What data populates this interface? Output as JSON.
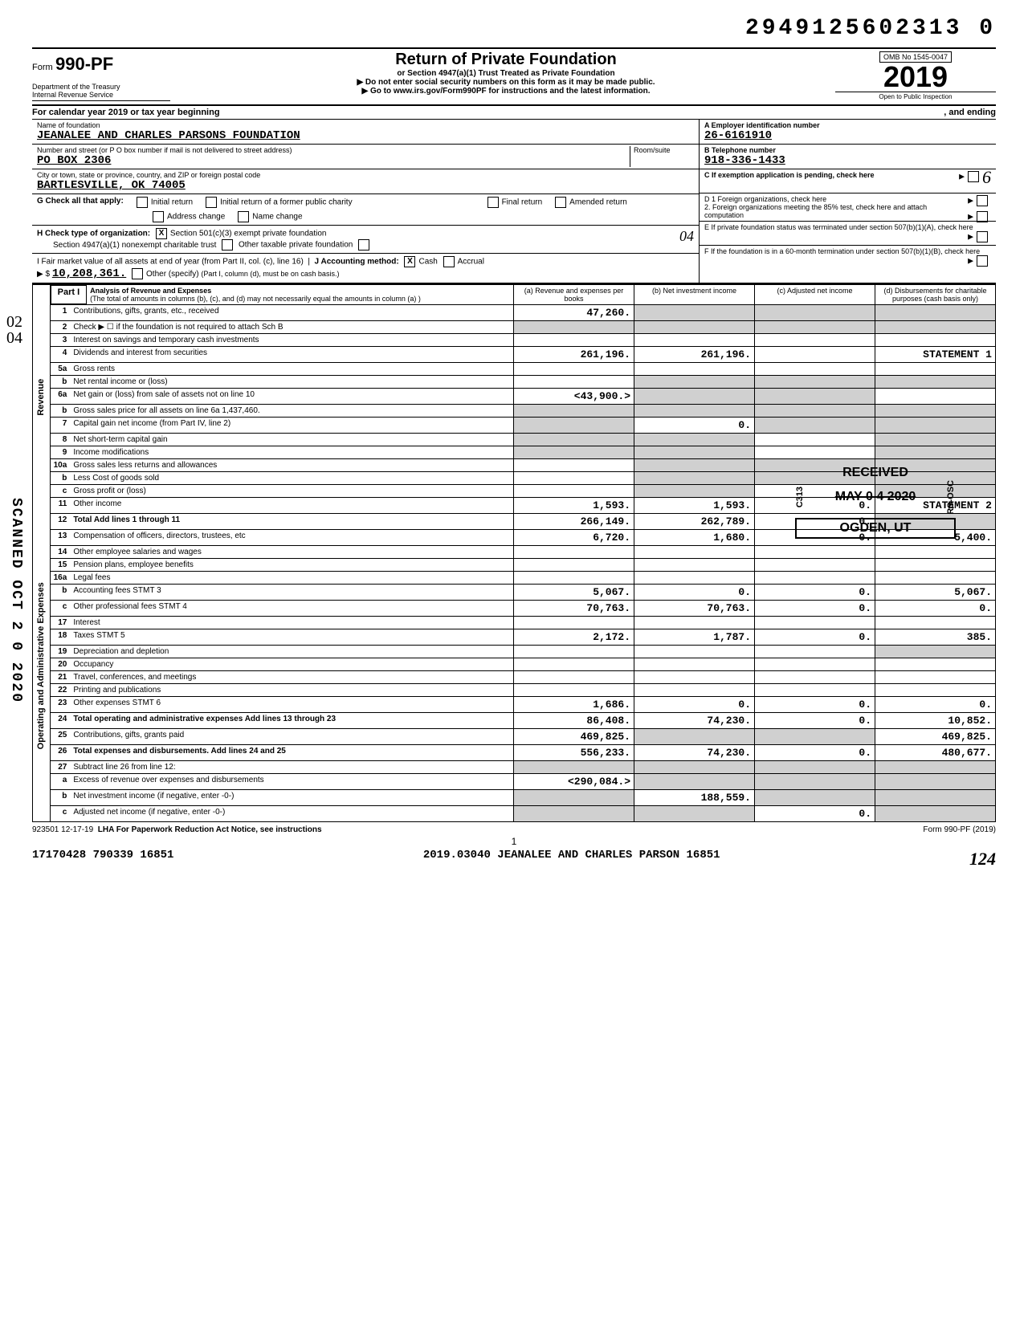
{
  "doc_number": "2949125602313 0",
  "form": {
    "prefix": "Form",
    "number": "990-PF",
    "dept": "Department of the Treasury",
    "irs": "Internal Revenue Service"
  },
  "header": {
    "title": "Return of Private Foundation",
    "sub1": "or Section 4947(a)(1) Trust Treated as Private Foundation",
    "sub2": "Do not enter social security numbers on this form as it may be made public.",
    "sub3": "Go to www.irs.gov/Form990PF for instructions and the latest information.",
    "omb": "OMB No  1545-0047",
    "year": "2019",
    "inspection": "Open to Public Inspection"
  },
  "calyear": {
    "left": "For calendar year 2019 or tax year beginning",
    "right": ", and ending"
  },
  "foundation": {
    "name_label": "Name of foundation",
    "name": "JEANALEE AND CHARLES PARSONS FOUNDATION",
    "addr_label": "Number and street (or P O  box number if mail is not delivered to street address)",
    "room_label": "Room/suite",
    "addr": "PO BOX 2306",
    "city_label": "City or town, state or province, country, and ZIP or foreign postal code",
    "city": "BARTLESVILLE, OK  74005"
  },
  "rightcol": {
    "a_label": "A  Employer identification number",
    "a_value": "26-6161910",
    "b_label": "B  Telephone number",
    "b_value": "918-336-1433",
    "c_label": "C  If exemption application is pending, check here",
    "d1_label": "D  1   Foreign organizations, check here",
    "d2_label": "2.  Foreign organizations meeting the 85% test, check here and attach computation",
    "e_label": "E   If private foundation status was terminated under section 507(b)(1)(A), check here",
    "f_label": "F   If the foundation is in a 60-month termination under section 507(b)(1)(B), check here"
  },
  "g": {
    "label": "G   Check all that apply:",
    "opts": [
      "Initial return",
      "Final return",
      "Address change",
      "Initial return of a former public charity",
      "Amended return",
      "Name change"
    ]
  },
  "h": {
    "label": "H   Check type of organization:",
    "o1": "Section 501(c)(3) exempt private foundation",
    "o2": "Section 4947(a)(1) nonexempt charitable trust",
    "o3": "Other taxable private foundation"
  },
  "i": {
    "label": "I   Fair market value of all assets at end of year (from Part II, col. (c), line 16)",
    "value": "10,208,361.",
    "note": "(Part I, column (d), must be on cash basis.)"
  },
  "j": {
    "label": "J    Accounting method:",
    "cash": "Cash",
    "accrual": "Accrual",
    "other": "Other (specify)"
  },
  "hw04": "04",
  "hw02": "02",
  "hw04b": "04",
  "hw6": "6",
  "part1": {
    "label": "Part I",
    "title": "Analysis of Revenue and Expenses",
    "sub": "(The total of amounts in columns (b), (c), and (d) may not necessarily equal the amounts in column (a) )",
    "cols": [
      "(a) Revenue and expenses per books",
      "(b) Net investment income",
      "(c) Adjusted net income",
      "(d) Disbursements for charitable purposes (cash basis only)"
    ]
  },
  "side_labels": {
    "revenue": "Revenue",
    "expenses": "Operating and Administrative Expenses"
  },
  "scanned": "SCANNED OCT 2 0 2020",
  "received": {
    "title": "RECEIVED",
    "date": "MAY 0 4 2020",
    "loc": "OGDEN, UT",
    "side": "C313",
    "side2": "RS-OSC"
  },
  "lines": [
    {
      "n": "1",
      "d": "Contributions, gifts, grants, etc., received",
      "a": "47,260.",
      "b": "",
      "c": "",
      "dd": "",
      "bs": true,
      "cs": true,
      "ds": true
    },
    {
      "n": "2",
      "d": "Check ▶ ☐  if the foundation is not required to attach Sch  B",
      "a": "",
      "b": "",
      "c": "",
      "dd": "",
      "as": true,
      "bs": true,
      "cs": true,
      "ds": true
    },
    {
      "n": "3",
      "d": "Interest on savings and temporary cash investments",
      "a": "",
      "b": "",
      "c": "",
      "dd": ""
    },
    {
      "n": "4",
      "d": "Dividends and interest from securities",
      "a": "261,196.",
      "b": "261,196.",
      "c": "",
      "dd": "STATEMENT 1"
    },
    {
      "n": "5a",
      "d": "Gross rents",
      "a": "",
      "b": "",
      "c": "",
      "dd": ""
    },
    {
      "n": "b",
      "d": "Net rental income or (loss)",
      "a": "",
      "b": "",
      "c": "",
      "dd": "",
      "bs": true,
      "cs": true,
      "ds": true
    },
    {
      "n": "6a",
      "d": "Net gain or (loss) from sale of assets not on line 10",
      "a": "<43,900.>",
      "b": "",
      "c": "",
      "dd": "",
      "bs": true,
      "cs": true
    },
    {
      "n": "b",
      "d": "Gross sales price for all assets on line 6a   1,437,460.",
      "a": "",
      "b": "",
      "c": "",
      "dd": "",
      "as": true,
      "bs": true,
      "cs": true,
      "ds": true
    },
    {
      "n": "7",
      "d": "Capital gain net income (from Part IV, line 2)",
      "a": "",
      "b": "0.",
      "c": "",
      "dd": "",
      "as": true,
      "cs": true,
      "ds": true
    },
    {
      "n": "8",
      "d": "Net short-term capital gain",
      "a": "",
      "b": "",
      "c": "",
      "dd": "",
      "as": true,
      "bs": true,
      "ds": true
    },
    {
      "n": "9",
      "d": "Income modifications",
      "a": "",
      "b": "",
      "c": "",
      "dd": "",
      "as": true,
      "bs": true,
      "ds": true
    },
    {
      "n": "10a",
      "d": "Gross sales less returns and allowances",
      "a": "",
      "b": "",
      "c": "",
      "dd": "",
      "bs": true,
      "cs": true,
      "ds": true
    },
    {
      "n": "b",
      "d": "Less  Cost of goods sold",
      "a": "",
      "b": "",
      "c": "",
      "dd": "",
      "bs": true,
      "cs": true,
      "ds": true
    },
    {
      "n": "c",
      "d": "Gross profit or (loss)",
      "a": "",
      "b": "",
      "c": "",
      "dd": "",
      "bs": true,
      "ds": true
    },
    {
      "n": "11",
      "d": "Other income",
      "a": "1,593.",
      "b": "1,593.",
      "c": "0.",
      "dd": "STATEMENT 2"
    },
    {
      "n": "12",
      "d": "Total  Add lines 1 through 11",
      "a": "266,149.",
      "b": "262,789.",
      "c": "0.",
      "dd": "",
      "ds": true,
      "total": true
    },
    {
      "n": "13",
      "d": "Compensation of officers, directors, trustees, etc",
      "a": "6,720.",
      "b": "1,680.",
      "c": "0.",
      "dd": "5,400."
    },
    {
      "n": "14",
      "d": "Other employee salaries and wages",
      "a": "",
      "b": "",
      "c": "",
      "dd": ""
    },
    {
      "n": "15",
      "d": "Pension plans, employee benefits",
      "a": "",
      "b": "",
      "c": "",
      "dd": ""
    },
    {
      "n": "16a",
      "d": "Legal fees",
      "a": "",
      "b": "",
      "c": "",
      "dd": ""
    },
    {
      "n": "b",
      "d": "Accounting fees                 STMT 3",
      "a": "5,067.",
      "b": "0.",
      "c": "0.",
      "dd": "5,067."
    },
    {
      "n": "c",
      "d": "Other professional fees         STMT 4",
      "a": "70,763.",
      "b": "70,763.",
      "c": "0.",
      "dd": "0."
    },
    {
      "n": "17",
      "d": "Interest",
      "a": "",
      "b": "",
      "c": "",
      "dd": ""
    },
    {
      "n": "18",
      "d": "Taxes                           STMT 5",
      "a": "2,172.",
      "b": "1,787.",
      "c": "0.",
      "dd": "385."
    },
    {
      "n": "19",
      "d": "Depreciation and depletion",
      "a": "",
      "b": "",
      "c": "",
      "dd": "",
      "ds": true
    },
    {
      "n": "20",
      "d": "Occupancy",
      "a": "",
      "b": "",
      "c": "",
      "dd": ""
    },
    {
      "n": "21",
      "d": "Travel, conferences, and meetings",
      "a": "",
      "b": "",
      "c": "",
      "dd": ""
    },
    {
      "n": "22",
      "d": "Printing and publications",
      "a": "",
      "b": "",
      "c": "",
      "dd": ""
    },
    {
      "n": "23",
      "d": "Other expenses                  STMT 6",
      "a": "1,686.",
      "b": "0.",
      "c": "0.",
      "dd": "0."
    },
    {
      "n": "24",
      "d": "Total operating and administrative expenses  Add lines 13 through 23",
      "a": "86,408.",
      "b": "74,230.",
      "c": "0.",
      "dd": "10,852."
    },
    {
      "n": "25",
      "d": "Contributions, gifts, grants paid",
      "a": "469,825.",
      "b": "",
      "c": "",
      "dd": "469,825.",
      "bs": true,
      "cs": true
    },
    {
      "n": "26",
      "d": "Total expenses and disbursements. Add lines 24 and 25",
      "a": "556,233.",
      "b": "74,230.",
      "c": "0.",
      "dd": "480,677.",
      "total": true
    },
    {
      "n": "27",
      "d": "Subtract line 26 from line 12:",
      "a": "",
      "b": "",
      "c": "",
      "dd": "",
      "as": true,
      "bs": true,
      "cs": true,
      "ds": true
    },
    {
      "n": "a",
      "d": "Excess of revenue over expenses and disbursements",
      "a": "<290,084.>",
      "b": "",
      "c": "",
      "dd": "",
      "bs": true,
      "cs": true,
      "ds": true
    },
    {
      "n": "b",
      "d": "Net investment income (if negative, enter -0-)",
      "a": "",
      "b": "188,559.",
      "c": "",
      "dd": "",
      "as": true,
      "cs": true,
      "ds": true
    },
    {
      "n": "c",
      "d": "Adjusted net income (if negative, enter -0-)",
      "a": "",
      "b": "",
      "c": "0.",
      "dd": "",
      "as": true,
      "bs": true,
      "ds": true
    }
  ],
  "footer": {
    "code": "923501  12-17-19",
    "lha": "LHA   For Paperwork Reduction Act Notice, see instructions",
    "form": "Form 990-PF (2019)",
    "page": "1",
    "bl_left": "17170428 790339 16851",
    "bl_right": "2019.03040 JEANALEE AND CHARLES PARSON 16851"
  },
  "hw_corner": "124"
}
